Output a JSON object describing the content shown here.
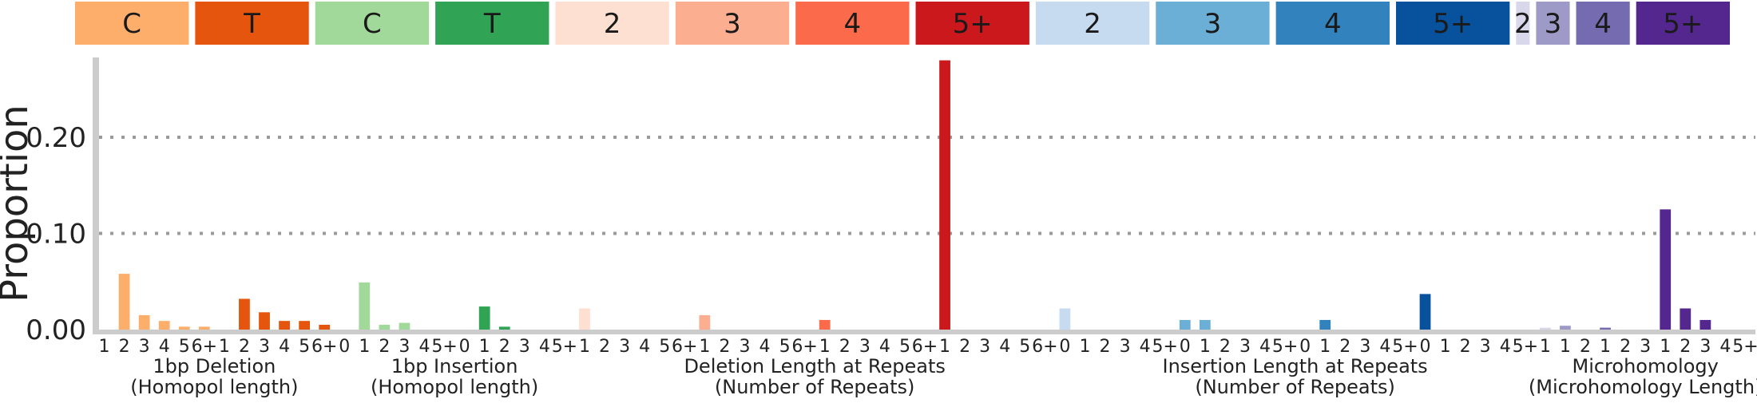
{
  "chart_data": {
    "type": "bar",
    "title": "",
    "ylabel": "Proportion",
    "ylim": [
      0,
      0.285
    ],
    "yticks": [
      0.0,
      0.1,
      0.2
    ],
    "ytick_labels": [
      "0.00",
      "0.10",
      "0.20"
    ],
    "gridlines": "dotted horizontal at 0.10 and 0.20",
    "header_blocks": [
      {
        "label": "C",
        "color": "#fdae6b"
      },
      {
        "label": "T",
        "color": "#e6550d"
      },
      {
        "label": "C",
        "color": "#a1d99b"
      },
      {
        "label": "T",
        "color": "#31a354"
      },
      {
        "label": "2",
        "color": "#fee0d2"
      },
      {
        "label": "3",
        "color": "#fcae91"
      },
      {
        "label": "4",
        "color": "#fb6a4a"
      },
      {
        "label": "5+",
        "color": "#cb181d"
      },
      {
        "label": "2",
        "color": "#c6dbef"
      },
      {
        "label": "3",
        "color": "#6baed6"
      },
      {
        "label": "4",
        "color": "#3182bd"
      },
      {
        "label": "5+",
        "color": "#08519c"
      },
      {
        "label": "2",
        "color": "#d9d8ea"
      },
      {
        "label": "3",
        "color": "#9e9ac8"
      },
      {
        "label": "4",
        "color": "#756bb1"
      },
      {
        "label": "5+",
        "color": "#54278f"
      }
    ],
    "groups": [
      {
        "label_line1": "1bp Deletion",
        "label_line2": "(Homopol length)",
        "segments": [
          {
            "color": "#fdae6b",
            "categories": [
              "1",
              "2",
              "3",
              "4",
              "5",
              "6+"
            ],
            "values": [
              0.0,
              0.058,
              0.015,
              0.009,
              0.003,
              0.003
            ]
          },
          {
            "color": "#e6550d",
            "categories": [
              "1",
              "2",
              "3",
              "4",
              "5",
              "6+"
            ],
            "values": [
              0.0,
              0.032,
              0.018,
              0.009,
              0.009,
              0.005
            ]
          }
        ]
      },
      {
        "label_line1": "1bp Insertion",
        "label_line2": "(Homopol length)",
        "segments": [
          {
            "color": "#a1d99b",
            "categories": [
              "0",
              "1",
              "2",
              "3",
              "4",
              "5+"
            ],
            "values": [
              0.0,
              0.049,
              0.005,
              0.007,
              0.0,
              0.0
            ]
          },
          {
            "color": "#31a354",
            "categories": [
              "0",
              "1",
              "2",
              "3",
              "4",
              "5+"
            ],
            "values": [
              0.0,
              0.024,
              0.003,
              0.0,
              0.0,
              0.0
            ]
          }
        ]
      },
      {
        "label_line1": "Deletion Length at Repeats",
        "label_line2": "(Number of Repeats)",
        "segments": [
          {
            "color": "#fee0d2",
            "categories": [
              "1",
              "2",
              "3",
              "4",
              "5",
              "6+"
            ],
            "values": [
              0.022,
              0.0,
              0.0,
              0.0,
              0.0,
              0.0
            ]
          },
          {
            "color": "#fcae91",
            "categories": [
              "1",
              "2",
              "3",
              "4",
              "5",
              "6+"
            ],
            "values": [
              0.015,
              0.0,
              0.0,
              0.0,
              0.0,
              0.0
            ]
          },
          {
            "color": "#fb6a4a",
            "categories": [
              "1",
              "2",
              "3",
              "4",
              "5",
              "6+"
            ],
            "values": [
              0.01,
              0.0,
              0.0,
              0.0,
              0.0,
              0.0
            ]
          },
          {
            "color": "#cb181d",
            "categories": [
              "1",
              "2",
              "3",
              "4",
              "5",
              "6+"
            ],
            "values": [
              0.28,
              0.0,
              0.0,
              0.0,
              0.0,
              0.0
            ]
          }
        ]
      },
      {
        "label_line1": "Insertion Length at Repeats",
        "label_line2": "(Number of Repeats)",
        "segments": [
          {
            "color": "#c6dbef",
            "categories": [
              "0",
              "1",
              "2",
              "3",
              "4",
              "5+"
            ],
            "values": [
              0.022,
              0.0,
              0.0,
              0.0,
              0.0,
              0.0
            ]
          },
          {
            "color": "#6baed6",
            "categories": [
              "0",
              "1",
              "2",
              "3",
              "4",
              "5+"
            ],
            "values": [
              0.01,
              0.01,
              0.0,
              0.0,
              0.0,
              0.0
            ]
          },
          {
            "color": "#3182bd",
            "categories": [
              "0",
              "1",
              "2",
              "3",
              "4",
              "5+"
            ],
            "values": [
              0.0,
              0.01,
              0.0,
              0.0,
              0.0,
              0.0
            ]
          },
          {
            "color": "#08519c",
            "categories": [
              "0",
              "1",
              "2",
              "3",
              "4",
              "5+"
            ],
            "values": [
              0.037,
              0.0,
              0.0,
              0.0,
              0.0,
              0.0
            ]
          }
        ]
      },
      {
        "label_line1": "Microhomology",
        "label_line2": "(Microhomology Length)",
        "segments": [
          {
            "color": "#d9d8ea",
            "categories": [
              "1"
            ],
            "values": [
              0.002
            ]
          },
          {
            "color": "#9e9ac8",
            "categories": [
              "1",
              "2"
            ],
            "values": [
              0.004,
              0.0
            ]
          },
          {
            "color": "#756bb1",
            "categories": [
              "1",
              "2",
              "3"
            ],
            "values": [
              0.002,
              0.0,
              0.0
            ]
          },
          {
            "color": "#54278f",
            "categories": [
              "1",
              "2",
              "3",
              "4",
              "5+"
            ],
            "values": [
              0.125,
              0.022,
              0.01,
              0.0,
              0.0
            ]
          }
        ]
      }
    ]
  }
}
